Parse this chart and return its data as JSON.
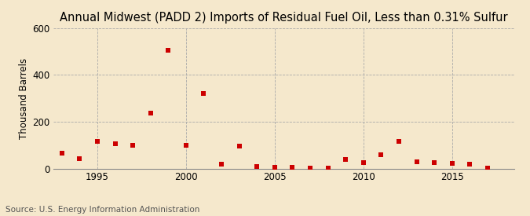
{
  "title": "Annual Midwest (PADD 2) Imports of Residual Fuel Oil, Less than 0.31% Sulfur",
  "ylabel": "Thousand Barrels",
  "source": "Source: U.S. Energy Information Administration",
  "background_color": "#f5e8cc",
  "marker_color": "#cc0000",
  "years": [
    1993,
    1994,
    1995,
    1996,
    1997,
    1998,
    1999,
    2000,
    2001,
    2002,
    2003,
    2004,
    2005,
    2006,
    2007,
    2008,
    2009,
    2010,
    2011,
    2012,
    2013,
    2014,
    2015,
    2016,
    2017
  ],
  "values": [
    65,
    42,
    115,
    105,
    100,
    235,
    505,
    100,
    320,
    18,
    95,
    8,
    5,
    5,
    3,
    3,
    40,
    25,
    58,
    115,
    30,
    25,
    22,
    18,
    3
  ],
  "ylim": [
    0,
    600
  ],
  "yticks": [
    0,
    200,
    400,
    600
  ],
  "xlim": [
    1992.5,
    2018.5
  ],
  "xticks": [
    1995,
    2000,
    2005,
    2010,
    2015
  ],
  "title_fontsize": 10.5,
  "label_fontsize": 8.5,
  "tick_fontsize": 8.5,
  "source_fontsize": 7.5,
  "marker_size": 22
}
